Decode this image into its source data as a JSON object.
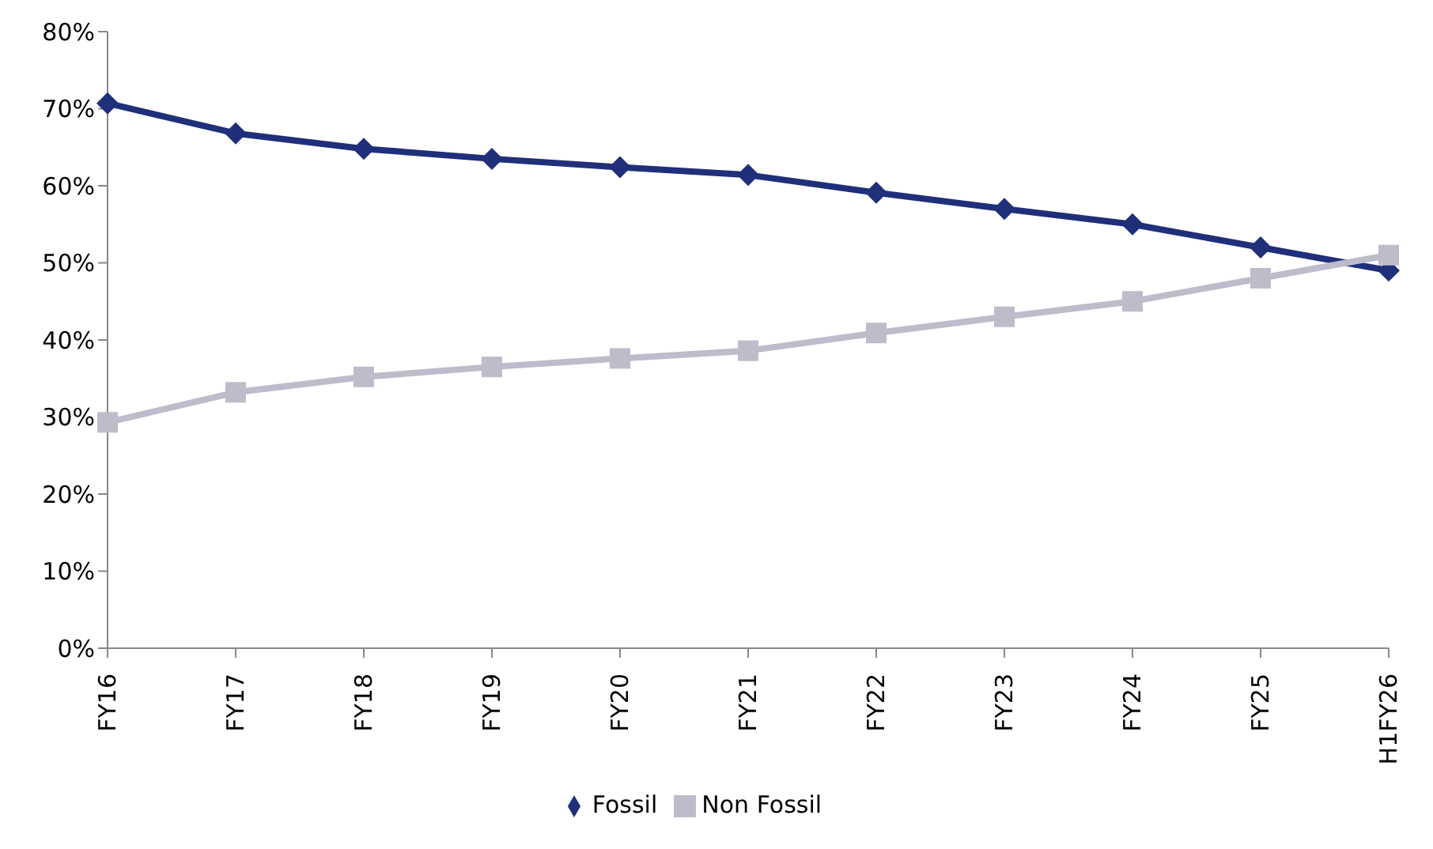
{
  "chart_data": {
    "type": "line",
    "categories": [
      "FY16",
      "FY17",
      "FY18",
      "FY19",
      "FY20",
      "FY21",
      "FY22",
      "FY23",
      "FY24",
      "FY25",
      "H1FY26"
    ],
    "series": [
      {
        "name": "Fossil",
        "color": "#1f2f7a",
        "marker": "diamond",
        "values": [
          70.7,
          66.8,
          64.8,
          63.5,
          62.4,
          61.4,
          59.1,
          57,
          55,
          52,
          49
        ]
      },
      {
        "name": "Non Fossil",
        "color": "#bcbccb",
        "marker": "square",
        "values": [
          29.3,
          33.2,
          35.2,
          36.5,
          37.6,
          38.6,
          40.9,
          43,
          45,
          48,
          51
        ]
      }
    ],
    "ylim": [
      0,
      80
    ],
    "yticks": [
      {
        "value": 0,
        "label": "0%"
      },
      {
        "value": 10,
        "label": "10%"
      },
      {
        "value": 20,
        "label": "20%"
      },
      {
        "value": 30,
        "label": "30%"
      },
      {
        "value": 40,
        "label": "40%"
      },
      {
        "value": 50,
        "label": "50%"
      },
      {
        "value": 60,
        "label": "60%"
      },
      {
        "value": 70,
        "label": "70%"
      },
      {
        "value": 80,
        "label": "80%"
      }
    ],
    "grid": false,
    "legend": "bottom"
  }
}
